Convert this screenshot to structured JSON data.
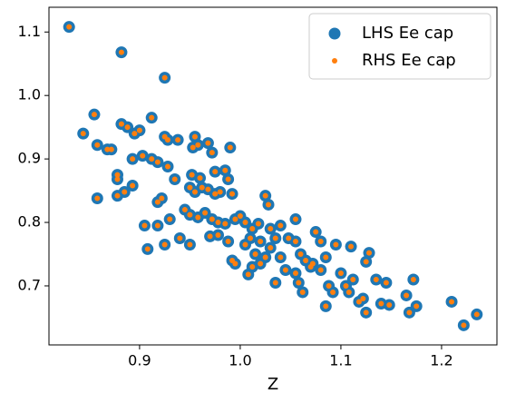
{
  "chart_data": {
    "type": "scatter",
    "x_label": "Z",
    "xlim": [
      0.81,
      1.255
    ],
    "ylim": [
      0.607,
      1.139
    ],
    "xticks": [
      0.9,
      {
        "value": 1,
        "label": "1.0"
      },
      1.1,
      1.2
    ],
    "yticks": [
      0.7,
      0.8,
      0.9,
      {
        "value": 1,
        "label": "1.0"
      },
      1.1
    ],
    "legend": "upper right",
    "x": [
      0.83,
      0.882,
      0.925,
      0.855,
      0.844,
      0.858,
      0.868,
      0.872,
      0.882,
      0.888,
      0.895,
      0.9,
      0.912,
      0.925,
      0.928,
      0.938,
      0.955,
      0.953,
      0.958,
      0.968,
      0.972,
      0.99,
      0.878,
      0.878,
      0.893,
      0.903,
      0.912,
      0.918,
      0.928,
      0.935,
      0.952,
      0.96,
      0.975,
      0.985,
      0.988,
      0.858,
      0.885,
      0.878,
      0.893,
      0.922,
      0.918,
      0.95,
      0.955,
      0.962,
      0.968,
      0.975,
      0.98,
      0.992,
      1.025,
      1.028,
      0.905,
      0.918,
      0.93,
      0.945,
      0.95,
      0.958,
      0.965,
      0.972,
      0.978,
      0.985,
      0.995,
      1.0,
      1.005,
      1.012,
      1.018,
      1.03,
      1.04,
      1.055,
      0.908,
      0.925,
      0.94,
      0.95,
      0.97,
      0.978,
      0.988,
      0.992,
      0.995,
      1.005,
      1.01,
      1.015,
      1.02,
      1.03,
      1.035,
      1.04,
      1.048,
      1.055,
      1.06,
      1.065,
      1.07,
      1.075,
      1.08,
      1.085,
      1.095,
      1.11,
      1.128,
      1.008,
      1.012,
      1.02,
      1.025,
      1.035,
      1.045,
      1.055,
      1.058,
      1.062,
      1.072,
      1.08,
      1.088,
      1.092,
      1.1,
      1.105,
      1.108,
      1.112,
      1.118,
      1.122,
      1.125,
      1.125,
      1.135,
      1.14,
      1.145,
      1.148,
      1.085,
      1.165,
      1.168,
      1.172,
      1.175,
      1.21,
      1.222,
      1.235
    ],
    "series": [
      {
        "name": "LHS Ee cap",
        "color": "#1f77b4",
        "values": [
          1.108,
          1.068,
          1.028,
          0.97,
          0.94,
          0.922,
          0.915,
          0.915,
          0.955,
          0.95,
          0.94,
          0.945,
          0.965,
          0.935,
          0.93,
          0.93,
          0.935,
          0.918,
          0.922,
          0.925,
          0.91,
          0.918,
          0.875,
          0.868,
          0.9,
          0.905,
          0.9,
          0.895,
          0.888,
          0.868,
          0.875,
          0.87,
          0.88,
          0.882,
          0.868,
          0.838,
          0.848,
          0.842,
          0.858,
          0.838,
          0.832,
          0.855,
          0.848,
          0.855,
          0.852,
          0.845,
          0.848,
          0.845,
          0.842,
          0.828,
          0.795,
          0.795,
          0.805,
          0.82,
          0.812,
          0.808,
          0.815,
          0.805,
          0.8,
          0.798,
          0.805,
          0.81,
          0.8,
          0.79,
          0.798,
          0.79,
          0.795,
          0.805,
          0.758,
          0.765,
          0.775,
          0.765,
          0.778,
          0.78,
          0.77,
          0.74,
          0.735,
          0.765,
          0.775,
          0.75,
          0.77,
          0.76,
          0.775,
          0.745,
          0.775,
          0.77,
          0.75,
          0.74,
          0.73,
          0.785,
          0.77,
          0.745,
          0.765,
          0.762,
          0.752,
          0.718,
          0.73,
          0.735,
          0.745,
          0.705,
          0.725,
          0.72,
          0.705,
          0.69,
          0.735,
          0.725,
          0.7,
          0.69,
          0.72,
          0.7,
          0.69,
          0.71,
          0.675,
          0.68,
          0.658,
          0.738,
          0.71,
          0.672,
          0.705,
          0.67,
          0.668,
          0.685,
          0.658,
          0.71,
          0.668,
          0.675,
          0.638,
          0.655
        ]
      },
      {
        "name": "RHS Ee cap",
        "color": "#ff7f0e",
        "values": [
          1.108,
          1.068,
          1.028,
          0.97,
          0.94,
          0.922,
          0.915,
          0.915,
          0.955,
          0.95,
          0.94,
          0.945,
          0.965,
          0.935,
          0.93,
          0.93,
          0.935,
          0.918,
          0.922,
          0.925,
          0.91,
          0.918,
          0.875,
          0.868,
          0.9,
          0.905,
          0.9,
          0.895,
          0.888,
          0.868,
          0.875,
          0.87,
          0.88,
          0.882,
          0.868,
          0.838,
          0.848,
          0.842,
          0.858,
          0.838,
          0.832,
          0.855,
          0.848,
          0.855,
          0.852,
          0.845,
          0.848,
          0.845,
          0.842,
          0.828,
          0.795,
          0.795,
          0.805,
          0.82,
          0.812,
          0.808,
          0.815,
          0.805,
          0.8,
          0.798,
          0.805,
          0.81,
          0.8,
          0.79,
          0.798,
          0.79,
          0.795,
          0.805,
          0.758,
          0.765,
          0.775,
          0.765,
          0.778,
          0.78,
          0.77,
          0.74,
          0.735,
          0.765,
          0.775,
          0.75,
          0.77,
          0.76,
          0.775,
          0.745,
          0.775,
          0.77,
          0.75,
          0.74,
          0.73,
          0.785,
          0.77,
          0.745,
          0.765,
          0.762,
          0.752,
          0.718,
          0.73,
          0.735,
          0.745,
          0.705,
          0.725,
          0.72,
          0.705,
          0.69,
          0.735,
          0.725,
          0.7,
          0.69,
          0.72,
          0.7,
          0.69,
          0.71,
          0.675,
          0.68,
          0.658,
          0.738,
          0.71,
          0.672,
          0.705,
          0.67,
          0.668,
          0.685,
          0.658,
          0.71,
          0.668,
          0.675,
          0.638,
          0.655
        ]
      }
    ]
  }
}
